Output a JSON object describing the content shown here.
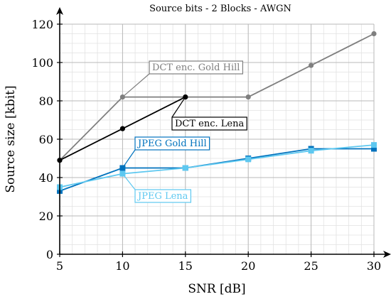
{
  "chart_data": {
    "type": "line",
    "title": "Source bits - 2 Blocks - AWGN",
    "xlabel": "SNR [dB]",
    "ylabel": "Source size [kbit]",
    "xlim": [
      5,
      30
    ],
    "ylim": [
      0,
      120
    ],
    "xticks": [
      5,
      10,
      15,
      20,
      25,
      30
    ],
    "yticks": [
      0,
      20,
      40,
      60,
      80,
      100,
      120
    ],
    "grid": true,
    "series": [
      {
        "name": "DCT enc. Gold Hill",
        "color": "#7f7f7f",
        "marker": "circle",
        "x": [
          5,
          10,
          15,
          20,
          25,
          30
        ],
        "y": [
          49,
          82,
          82,
          82,
          98.5,
          115
        ]
      },
      {
        "name": "DCT enc. Lena",
        "color": "#000000",
        "marker": "circle",
        "x": [
          5,
          10,
          15
        ],
        "y": [
          49,
          65.5,
          82
        ]
      },
      {
        "name": "JPEG Gold Hill",
        "color": "#0072bd",
        "marker": "square",
        "x": [
          5,
          10,
          15,
          20,
          25,
          30
        ],
        "y": [
          33,
          45,
          45,
          50,
          55,
          55
        ]
      },
      {
        "name": "JPEG Lena",
        "color": "#5ec8f0",
        "marker": "square",
        "x": [
          5,
          10,
          15,
          20,
          25,
          30
        ],
        "y": [
          35,
          42,
          45,
          49.5,
          54,
          57
        ]
      }
    ],
    "annotations": [
      {
        "text": "DCT enc. Gold Hill",
        "series": 0
      },
      {
        "text": "DCT enc. Lena",
        "series": 1
      },
      {
        "text": "JPEG Gold Hill",
        "series": 2
      },
      {
        "text": "JPEG Lena",
        "series": 3
      }
    ]
  }
}
